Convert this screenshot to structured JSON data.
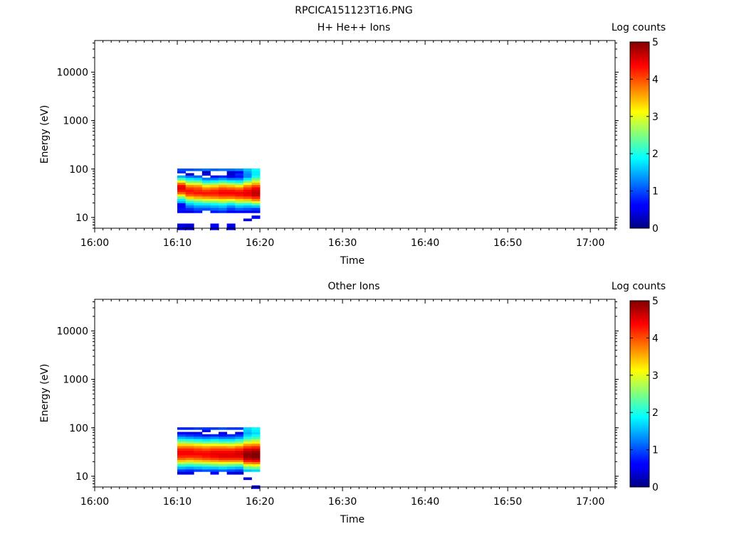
{
  "figure_title": "RPCICA151123T16.PNG",
  "chart_data": [
    {
      "type": "heatmap",
      "title": "H+ He++ Ions",
      "xlabel": "Time",
      "ylabel": "Energy (eV)",
      "colorbar_label": "Log counts",
      "colorbar_range": [
        0,
        5
      ],
      "colorbar_ticks": [
        "0",
        "1",
        "2",
        "3",
        "4",
        "5"
      ],
      "colormap": "jet",
      "x_ticks": [
        "16:00",
        "16:10",
        "16:20",
        "16:30",
        "16:40",
        "16:50",
        "17:00"
      ],
      "x_range_minutes": [
        0,
        63
      ],
      "y_scale": "log",
      "y_ticks": [
        "10",
        "100",
        "1000",
        "10000"
      ],
      "y_range": [
        6,
        45000
      ],
      "grid": false,
      "time_bins": [
        "16:10",
        "16:11",
        "16:12",
        "16:13",
        "16:14",
        "16:15",
        "16:16",
        "16:17",
        "16:18",
        "16:19"
      ],
      "energy_bins_eV": [
        6,
        7,
        8,
        9,
        10,
        12,
        13,
        15,
        17,
        19,
        21,
        23,
        26,
        29,
        32,
        36,
        40,
        45,
        50,
        56,
        63,
        70,
        78,
        87,
        97
      ],
      "log_counts": [
        [
          0.5,
          0.5,
          null,
          null,
          null,
          null,
          0.6,
          0.7,
          0.6,
          0.6,
          1.5,
          1.8,
          2.4,
          3.2,
          3.9,
          4.3,
          4.5,
          4.4,
          3.8,
          3.0,
          2.2,
          1.5,
          null,
          0.8,
          1.0
        ],
        [
          0.4,
          0.4,
          null,
          null,
          null,
          null,
          0.5,
          0.8,
          1.2,
          1.6,
          2.0,
          2.6,
          3.3,
          3.9,
          4.2,
          4.3,
          4.1,
          3.7,
          3.0,
          2.4,
          1.8,
          1.2,
          0.4,
          null,
          1.0
        ],
        [
          null,
          null,
          null,
          null,
          null,
          null,
          0.7,
          1.0,
          1.4,
          1.8,
          2.2,
          2.8,
          3.5,
          4.0,
          4.3,
          4.2,
          4.0,
          3.6,
          3.0,
          2.3,
          1.7,
          1.1,
          null,
          null,
          1.1
        ],
        [
          null,
          null,
          null,
          null,
          null,
          null,
          null,
          1.0,
          1.4,
          1.8,
          2.4,
          3.0,
          3.6,
          4.1,
          4.3,
          4.1,
          3.7,
          3.2,
          2.5,
          1.8,
          1.2,
          null,
          0.5,
          0.3,
          1.2
        ],
        [
          0.6,
          0.6,
          null,
          null,
          null,
          null,
          0.7,
          1.1,
          1.5,
          1.9,
          2.4,
          3.0,
          3.7,
          4.1,
          4.3,
          4.2,
          3.8,
          3.3,
          2.6,
          1.9,
          1.2,
          0.7,
          null,
          null,
          1.1
        ],
        [
          null,
          null,
          null,
          null,
          null,
          null,
          0.8,
          1.2,
          1.6,
          2.0,
          2.6,
          3.2,
          3.8,
          4.2,
          4.4,
          4.3,
          4.0,
          3.5,
          2.8,
          2.1,
          1.4,
          0.8,
          null,
          null,
          1.2
        ],
        [
          0.5,
          0.5,
          null,
          null,
          null,
          null,
          0.6,
          0.9,
          1.3,
          1.8,
          2.4,
          3.1,
          3.8,
          4.2,
          4.4,
          4.3,
          3.9,
          3.4,
          2.7,
          1.9,
          1.2,
          0.5,
          0.4,
          0.4,
          1.2
        ],
        [
          null,
          null,
          null,
          null,
          null,
          null,
          0.6,
          1.1,
          1.6,
          2.1,
          2.7,
          3.3,
          3.9,
          4.3,
          4.4,
          4.2,
          3.8,
          3.2,
          2.5,
          1.8,
          1.2,
          0.7,
          0.8,
          0.6,
          1.3
        ],
        [
          null,
          null,
          null,
          0.5,
          null,
          null,
          0.6,
          1.0,
          1.5,
          2.0,
          2.7,
          3.4,
          4.0,
          4.4,
          4.5,
          4.4,
          4.1,
          3.7,
          3.1,
          2.4,
          1.8,
          1.3,
          1.3,
          1.4,
          1.6
        ],
        [
          null,
          null,
          null,
          null,
          0.6,
          null,
          0.5,
          0.9,
          1.6,
          2.3,
          3.0,
          3.7,
          4.2,
          4.6,
          4.7,
          4.6,
          4.4,
          4.0,
          3.5,
          2.9,
          2.4,
          2.0,
          1.8,
          1.8,
          1.9
        ]
      ]
    },
    {
      "type": "heatmap",
      "title": "Other Ions",
      "xlabel": "Time",
      "ylabel": "Energy (eV)",
      "colorbar_label": "Log counts",
      "colorbar_range": [
        0,
        5
      ],
      "colorbar_ticks": [
        "0",
        "1",
        "2",
        "3",
        "4",
        "5"
      ],
      "colormap": "jet",
      "x_ticks": [
        "16:00",
        "16:10",
        "16:20",
        "16:30",
        "16:40",
        "16:50",
        "17:00"
      ],
      "x_range_minutes": [
        0,
        63
      ],
      "y_scale": "log",
      "y_ticks": [
        "10",
        "100",
        "1000",
        "10000"
      ],
      "y_range": [
        6,
        45000
      ],
      "grid": false,
      "time_bins": [
        "16:10",
        "16:11",
        "16:12",
        "16:13",
        "16:14",
        "16:15",
        "16:16",
        "16:17",
        "16:18",
        "16:19"
      ],
      "energy_bins_eV": [
        6,
        7,
        8,
        9,
        10,
        12,
        13,
        15,
        17,
        19,
        21,
        23,
        26,
        29,
        32,
        36,
        40,
        45,
        50,
        56,
        63,
        70,
        78,
        87,
        97
      ],
      "log_counts": [
        [
          null,
          null,
          null,
          null,
          null,
          0.5,
          0.9,
          1.5,
          2.1,
          2.8,
          3.4,
          3.9,
          4.2,
          4.4,
          4.4,
          4.2,
          3.8,
          3.3,
          2.7,
          2.1,
          1.5,
          1.0,
          0.6,
          null,
          0.8
        ],
        [
          null,
          null,
          null,
          null,
          null,
          0.5,
          0.8,
          1.4,
          2.0,
          2.7,
          3.3,
          3.8,
          4.2,
          4.4,
          4.4,
          4.2,
          3.8,
          3.3,
          2.6,
          2.0,
          1.4,
          0.9,
          0.5,
          null,
          0.8
        ],
        [
          null,
          null,
          null,
          null,
          null,
          null,
          0.9,
          1.5,
          2.1,
          2.8,
          3.4,
          3.9,
          4.2,
          4.4,
          4.3,
          4.1,
          3.7,
          3.2,
          2.5,
          1.9,
          1.3,
          0.8,
          0.5,
          null,
          0.9
        ],
        [
          null,
          null,
          null,
          null,
          null,
          null,
          1.0,
          1.6,
          2.2,
          2.9,
          3.5,
          4.0,
          4.3,
          4.4,
          4.3,
          4.0,
          3.6,
          3.1,
          2.4,
          1.8,
          1.2,
          0.7,
          null,
          0.5,
          0.9
        ],
        [
          null,
          null,
          null,
          null,
          null,
          0.6,
          1.0,
          1.6,
          2.3,
          3.0,
          3.6,
          4.1,
          4.4,
          4.5,
          4.4,
          4.1,
          3.7,
          3.1,
          2.5,
          1.9,
          1.3,
          0.8,
          null,
          null,
          0.9
        ],
        [
          null,
          null,
          null,
          null,
          null,
          null,
          1.1,
          1.7,
          2.4,
          3.1,
          3.7,
          4.2,
          4.5,
          4.5,
          4.4,
          4.1,
          3.7,
          3.1,
          2.4,
          1.8,
          1.2,
          0.7,
          0.5,
          null,
          1.0
        ],
        [
          null,
          null,
          null,
          null,
          null,
          0.5,
          1.0,
          1.6,
          2.3,
          3.0,
          3.7,
          4.2,
          4.5,
          4.5,
          4.4,
          4.1,
          3.6,
          3.0,
          2.4,
          1.8,
          1.2,
          0.8,
          null,
          null,
          0.9
        ],
        [
          null,
          null,
          null,
          null,
          null,
          0.4,
          0.9,
          1.5,
          2.2,
          3.0,
          3.7,
          4.2,
          4.5,
          4.6,
          4.5,
          4.2,
          3.8,
          3.2,
          2.6,
          2.0,
          1.4,
          0.9,
          0.5,
          null,
          0.9
        ],
        [
          null,
          null,
          null,
          0.5,
          null,
          null,
          1.6,
          2.3,
          3.0,
          3.7,
          4.3,
          4.7,
          4.9,
          4.9,
          4.8,
          4.5,
          4.1,
          3.6,
          3.0,
          2.5,
          2.0,
          1.7,
          1.5,
          1.6,
          1.7
        ],
        [
          0.5,
          null,
          null,
          null,
          null,
          null,
          1.7,
          2.4,
          3.1,
          3.8,
          4.4,
          4.8,
          5.0,
          5.0,
          4.9,
          4.6,
          4.2,
          3.7,
          3.2,
          2.7,
          2.2,
          1.9,
          1.7,
          1.8,
          1.9
        ]
      ]
    }
  ]
}
